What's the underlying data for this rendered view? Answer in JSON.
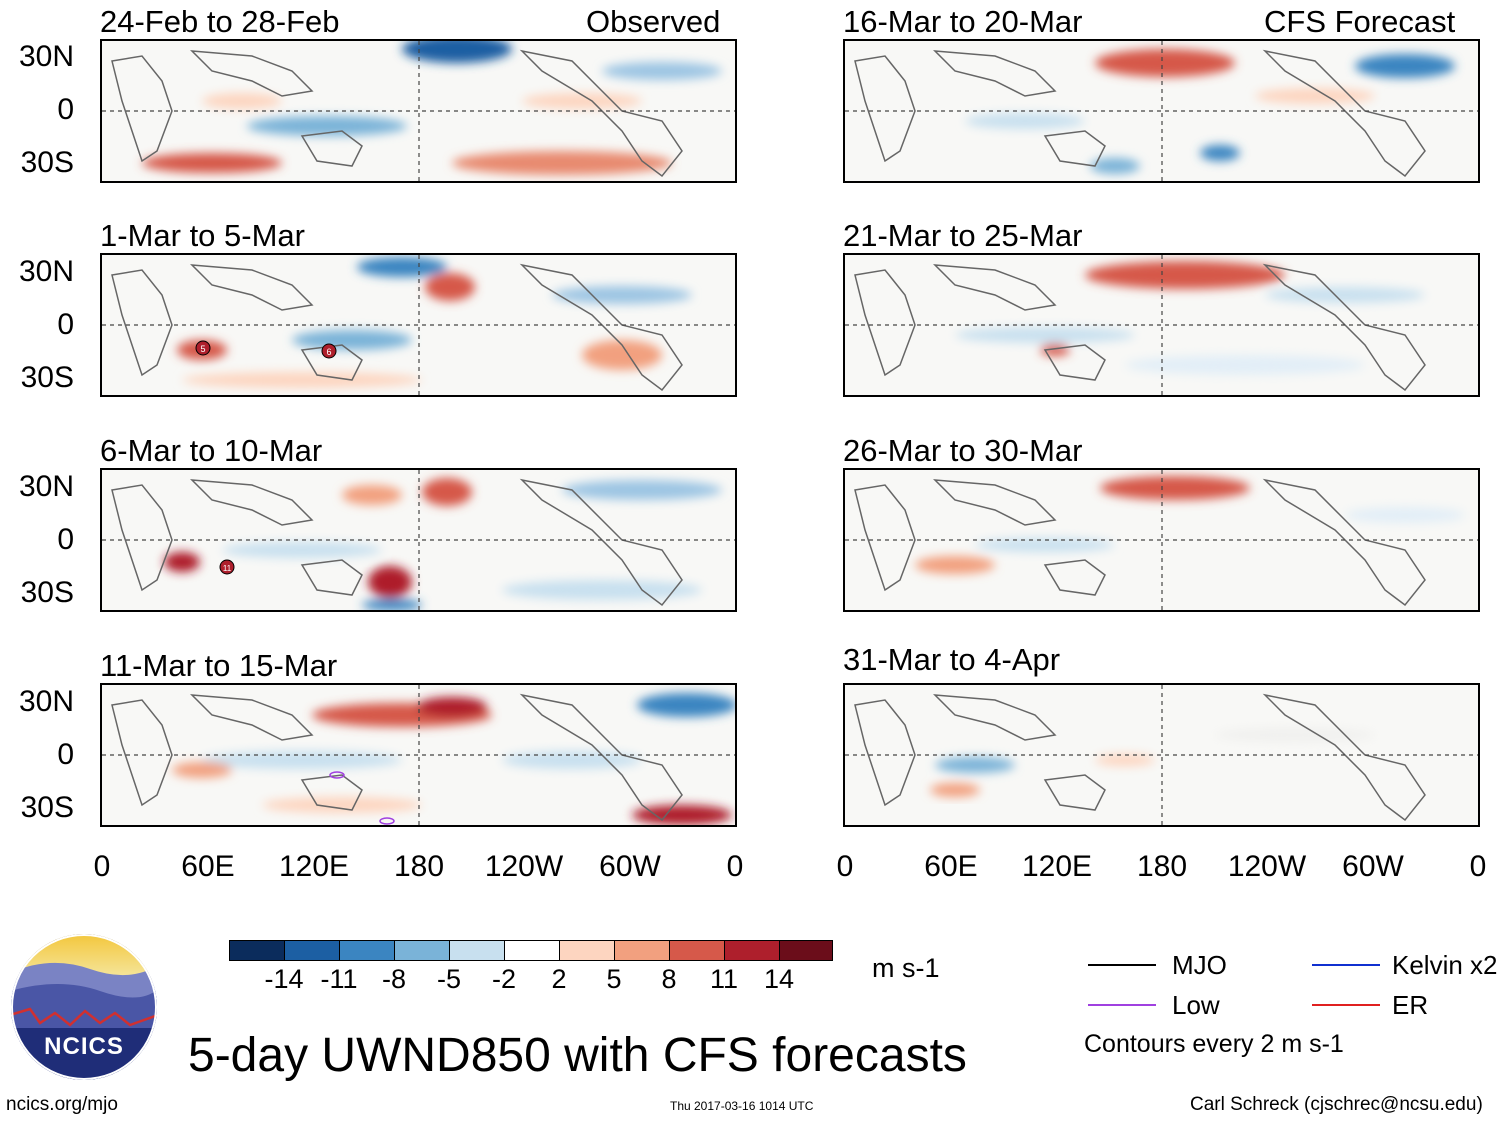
{
  "observed_label": "Observed",
  "forecast_label": "CFS Forecast",
  "panels_left": [
    {
      "title": "24-Feb to 28-Feb"
    },
    {
      "title": "1-Mar to 5-Mar"
    },
    {
      "title": "6-Mar to 10-Mar"
    },
    {
      "title": "11-Mar to 15-Mar"
    }
  ],
  "panels_right": [
    {
      "title": "16-Mar to 20-Mar"
    },
    {
      "title": "21-Mar to 25-Mar"
    },
    {
      "title": "26-Mar to 30-Mar"
    },
    {
      "title": "31-Mar to 4-Apr"
    }
  ],
  "lat_labels": [
    "30N",
    "0",
    "30S"
  ],
  "lon_labels": [
    "0",
    "60E",
    "120E",
    "180",
    "120W",
    "60W",
    "0"
  ],
  "colorbar": {
    "labels": [
      "-14",
      "-11",
      "-8",
      "-5",
      "-2",
      "2",
      "5",
      "8",
      "11",
      "14"
    ],
    "colors": [
      "#0b2c5c",
      "#1c5fa3",
      "#3b85c1",
      "#7ab3d8",
      "#c8e0ef",
      "#ffffff",
      "#fdd5c0",
      "#f2a07f",
      "#d6594a",
      "#ae1f2c",
      "#6b0d1a"
    ],
    "units": "m s-1"
  },
  "legend": {
    "items": [
      {
        "label": "MJO",
        "color": "#000000"
      },
      {
        "label": "Kelvin x2",
        "color": "#1030d0"
      },
      {
        "label": "Low",
        "color": "#a040e0"
      },
      {
        "label": "ER",
        "color": "#e02020"
      }
    ],
    "contours_note": "Contours every 2 m s-1"
  },
  "logo_text": "NCICS",
  "main_title": "5-day UWND850 with CFS forecasts",
  "footer": {
    "left": "ncics.org/mjo",
    "center": "Thu 2017-03-16 1014 UTC",
    "right": "Carl Schreck (cjschrec@ncsu.edu)"
  },
  "storm_markers": [
    {
      "panel": "left-1",
      "label": "5"
    },
    {
      "panel": "left-1",
      "label": "6"
    },
    {
      "panel": "left-2",
      "label": "11"
    }
  ]
}
